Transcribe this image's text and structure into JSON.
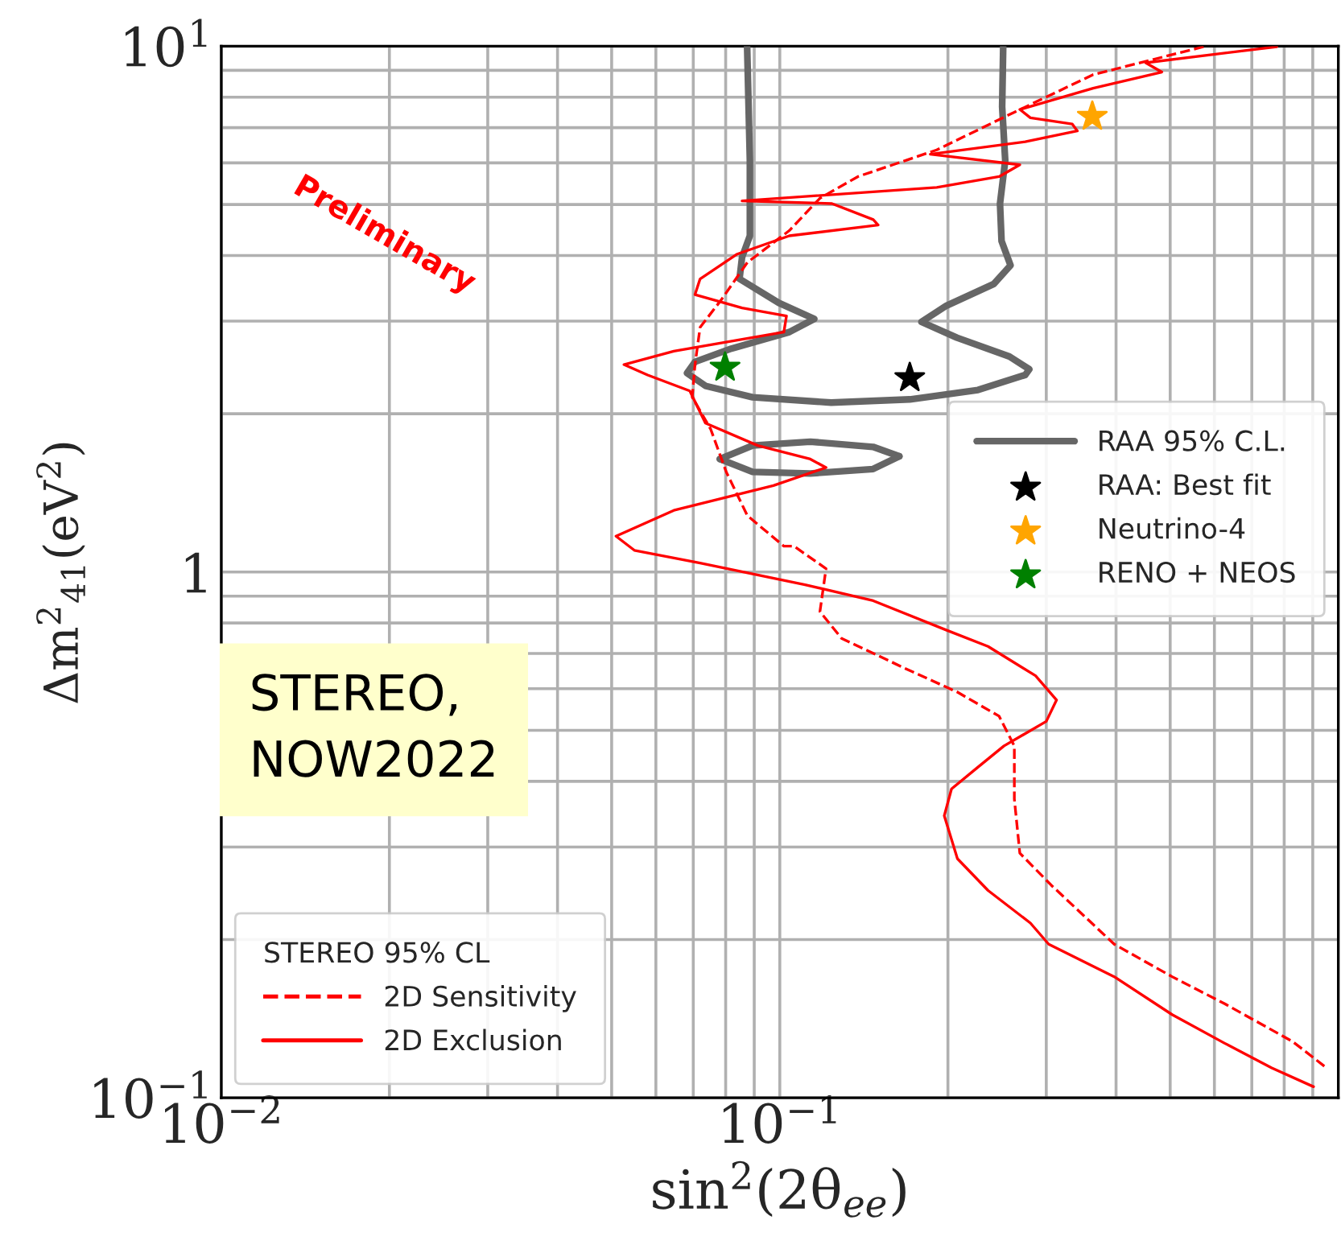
{
  "chart_data": {
    "type": "line",
    "xlabel": "sin$^{2}$(2θ$_{ee}$)",
    "ylabel": "Δm$^{2}$$_{41}$(eV$^{2}$)",
    "log": "xy",
    "xlim": [
      0.01,
      1
    ],
    "ylim": [
      0.1,
      10
    ],
    "xticks": [
      {
        "value": 0.01,
        "label": "10$^{−2}$"
      },
      {
        "value": 0.02,
        "label": null
      },
      {
        "value": 0.03,
        "label": null
      },
      {
        "value": 0.04,
        "label": null
      },
      {
        "value": 0.05,
        "label": null
      },
      {
        "value": 0.06,
        "label": null
      },
      {
        "value": 0.07,
        "label": null
      },
      {
        "value": 0.08,
        "label": null
      },
      {
        "value": 0.09,
        "label": null
      },
      {
        "value": 0.1,
        "label": "10$^{−1}$"
      },
      {
        "value": 0.2,
        "label": null
      },
      {
        "value": 0.3,
        "label": null
      },
      {
        "value": 0.4,
        "label": null
      },
      {
        "value": 0.5,
        "label": null
      },
      {
        "value": 0.6,
        "label": null
      },
      {
        "value": 0.7,
        "label": null
      },
      {
        "value": 0.8,
        "label": null
      },
      {
        "value": 0.9,
        "label": null
      }
    ],
    "yticks": [
      {
        "value": 0.1,
        "label": "10$^{−1}$"
      },
      {
        "value": 0.2,
        "label": null
      },
      {
        "value": 0.3,
        "label": null
      },
      {
        "value": 0.4,
        "label": null
      },
      {
        "value": 0.5,
        "label": null
      },
      {
        "value": 0.6,
        "label": null
      },
      {
        "value": 0.7,
        "label": null
      },
      {
        "value": 0.8,
        "label": null
      },
      {
        "value": 0.9,
        "label": null
      },
      {
        "value": 1,
        "label": "1"
      },
      {
        "value": 2,
        "label": null
      },
      {
        "value": 3,
        "label": null
      },
      {
        "value": 4,
        "label": null
      },
      {
        "value": 5,
        "label": null
      },
      {
        "value": 6,
        "label": null
      },
      {
        "value": 7,
        "label": null
      },
      {
        "value": 8,
        "label": null
      },
      {
        "value": 9,
        "label": null
      },
      {
        "value": 10,
        "label": "10$^{1}$"
      }
    ],
    "grid": true,
    "legend": "right",
    "legend_title": "STEREO 95% CL",
    "annotations": [
      "Preliminary",
      "STEREO,\nNOW2022"
    ],
    "series": [
      {
        "name": "RAA 95% C.L.",
        "color": "#666666",
        "line_style": "solid",
        "x": [
          0.0874,
          0.0884,
          0.0884,
          0.0856,
          0.0847,
          0.0996,
          0.1153,
          0.104,
          0.0819,
          0.0705,
          0.0682,
          0.0736,
          0.0894,
          0.1236,
          0.1709,
          0.2264,
          0.275,
          0.2798,
          0.2577,
          0.2076,
          0.1793,
          0.1988,
          0.2416,
          0.2589,
          0.2495,
          0.2479,
          0.2533,
          0.2501,
          0.2512
        ],
        "values": [
          10,
          6.06,
          4.36,
          3.97,
          3.61,
          3.25,
          3.03,
          2.86,
          2.66,
          2.51,
          2.39,
          2.26,
          2.15,
          2.1,
          2.13,
          2.22,
          2.37,
          2.43,
          2.57,
          2.79,
          2.99,
          3.21,
          3.53,
          3.83,
          4.26,
          5.02,
          6.06,
          7.67,
          10
        ]
      },
      {
        "color": "#666666",
        "line_style": "solid",
        "x": [
          0.0781,
          0.0894,
          0.1134,
          0.1469,
          0.1637
        ],
        "values": [
          1.64,
          1.74,
          1.77,
          1.73,
          1.66
        ]
      },
      {
        "color": "#666666",
        "line_style": "solid",
        "x": [
          0.1637,
          0.1469,
          0.1134,
          0.0894,
          0.0781
        ],
        "values": [
          1.66,
          1.57,
          1.54,
          1.55,
          1.64
        ]
      },
      {
        "name": "RAA: Best fit",
        "type": "scatter",
        "marker": "star",
        "color": "#000000",
        "x": [
          0.1709
        ],
        "values": [
          2.34
        ]
      },
      {
        "name": "Neutrino-4",
        "type": "scatter",
        "marker": "star",
        "color": "#ffa500",
        "x": [
          0.3627
        ],
        "values": [
          7.35
        ]
      },
      {
        "name": "RENO + NEOS",
        "type": "scatter",
        "marker": "star",
        "color": "#008000",
        "x": [
          0.0798
        ],
        "values": [
          2.45
        ]
      },
      {
        "name": "2D Sensitivity",
        "color": "#ff0000",
        "line_style": "dashed",
        "x": [
          0.574,
          0.364,
          0.263,
          0.191,
          0.138,
          0.118,
          0.104,
          0.0875,
          0.0785,
          0.072,
          0.0705,
          0.0697,
          0.0752,
          0.0802,
          0.0875,
          0.1017,
          0.106,
          0.121,
          0.118,
          0.129,
          0.167,
          0.208,
          0.247,
          0.263,
          0.263,
          0.269,
          0.306,
          0.397,
          0.504,
          0.626,
          0.828,
          0.953
        ],
        "values": [
          9.98,
          8.83,
          7.49,
          6.35,
          5.65,
          5.14,
          4.46,
          3.88,
          3.29,
          2.92,
          2.48,
          2.15,
          1.87,
          1.55,
          1.28,
          1.12,
          1.12,
          1.015,
          0.841,
          0.748,
          0.657,
          0.591,
          0.532,
          0.467,
          0.37,
          0.292,
          0.254,
          0.196,
          0.17,
          0.151,
          0.128,
          0.114
        ]
      },
      {
        "name": "2D Exclusion",
        "color": "#ff0000",
        "line_style": "solid",
        "x": [
          0.776,
          0.452,
          0.483,
          0.364,
          0.269,
          0.281,
          0.334,
          0.341,
          0.275,
          0.186,
          0.269,
          0.247,
          0.191,
          0.0856,
          0.124,
          0.147,
          0.15,
          0.104,
          0.0837,
          0.072,
          0.0705,
          0.0856,
          0.1028,
          0.1017,
          0.0646,
          0.0526,
          0.058,
          0.069,
          0.0736,
          0.0913,
          0.1134,
          0.121,
          0.0974,
          0.0646,
          0.0509,
          0.0549,
          0.072,
          0.111,
          0.147,
          0.199,
          0.236,
          0.287,
          0.313,
          0.3,
          0.252,
          0.226,
          0.203,
          0.197,
          0.208,
          0.236,
          0.281,
          0.303,
          0.397,
          0.504,
          0.626,
          0.76,
          0.903
        ],
        "values": [
          9.98,
          9.3,
          8.93,
          8.32,
          7.58,
          7.31,
          7.11,
          6.9,
          6.58,
          6.23,
          5.95,
          5.65,
          5.39,
          5.08,
          5.02,
          4.68,
          4.57,
          4.36,
          4.02,
          3.61,
          3.37,
          3.18,
          3.07,
          2.86,
          2.63,
          2.48,
          2.37,
          2.21,
          1.92,
          1.74,
          1.64,
          1.58,
          1.46,
          1.31,
          1.17,
          1.1,
          1.04,
          0.946,
          0.882,
          0.775,
          0.722,
          0.635,
          0.571,
          0.52,
          0.467,
          0.425,
          0.387,
          0.344,
          0.285,
          0.248,
          0.215,
          0.196,
          0.17,
          0.144,
          0.127,
          0.114,
          0.105
        ]
      }
    ]
  }
}
